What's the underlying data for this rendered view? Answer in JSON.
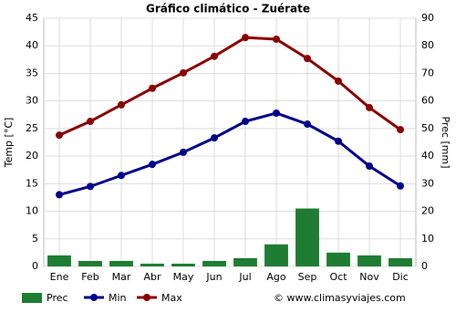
{
  "chart_data": {
    "type": "bar-line",
    "title": "Gráfico climático - Zuérate",
    "y_label": "Temp [°C]",
    "y2_label": "Prec [mm]",
    "source": "© www.climasyviajes.com",
    "categories": [
      "Ene",
      "Feb",
      "Mar",
      "Abr",
      "May",
      "Jun",
      "Jul",
      "Ago",
      "Sep",
      "Oct",
      "Nov",
      "Dic"
    ],
    "series": [
      {
        "name": "Prec",
        "type": "bar",
        "axis": "y2",
        "color": "#1e7d32",
        "values": [
          4,
          2,
          2,
          1,
          1,
          2,
          3,
          8,
          21,
          5,
          4,
          3
        ]
      },
      {
        "name": "Min",
        "type": "line",
        "color": "#00008b",
        "values": [
          13,
          14.5,
          16.5,
          18.5,
          20.7,
          23.3,
          26.3,
          27.8,
          25.8,
          22.7,
          18.2,
          14.6
        ]
      },
      {
        "name": "Max",
        "type": "line",
        "color": "#8b0000",
        "values": [
          23.8,
          26.3,
          29.3,
          32.3,
          35.1,
          38.1,
          41.5,
          41.2,
          37.7,
          33.6,
          28.8,
          24.8
        ]
      }
    ],
    "ylim": [
      0,
      45
    ],
    "yticks": [
      0,
      5,
      10,
      15,
      20,
      25,
      30,
      35,
      40,
      45
    ],
    "y2lim": [
      0,
      90
    ],
    "y2ticks": [
      0,
      10,
      20,
      30,
      40,
      50,
      60,
      70,
      80,
      90
    ],
    "grid": true
  }
}
